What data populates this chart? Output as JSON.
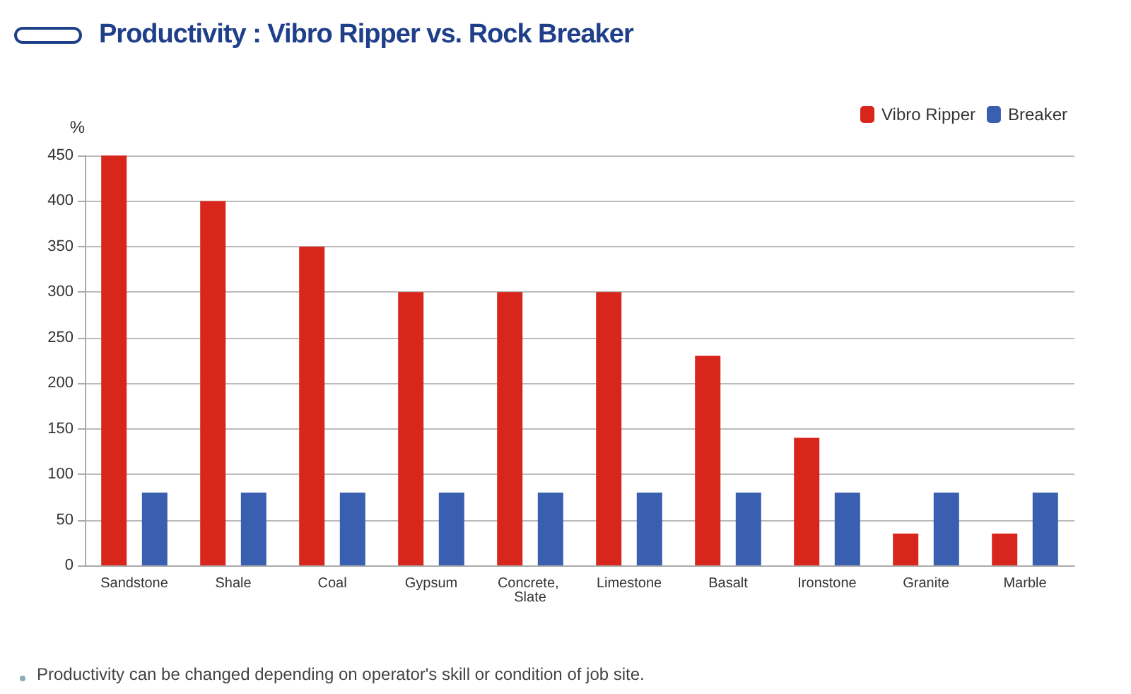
{
  "chart_data": {
    "type": "bar",
    "title": "Productivity : Vibro Ripper vs. Rock Breaker",
    "ylabel": "%",
    "categories": [
      "Sandstone",
      "Shale",
      "Coal",
      "Gypsum",
      "Concrete, Slate",
      "Limestone",
      "Basalt",
      "Ironstone",
      "Granite",
      "Marble"
    ],
    "series": [
      {
        "name": "Vibro Ripper",
        "color": "#d9261c",
        "values": [
          450,
          400,
          350,
          300,
          300,
          300,
          230,
          140,
          35,
          35
        ]
      },
      {
        "name": "Breaker",
        "color": "#3a5fb0",
        "values": [
          80,
          80,
          80,
          80,
          80,
          80,
          80,
          80,
          80,
          80
        ]
      }
    ],
    "ylim": [
      0,
      450
    ],
    "yticks": [
      0,
      50,
      100,
      150,
      200,
      250,
      300,
      350,
      400,
      450
    ],
    "grid": "y",
    "legend": "top right",
    "annotations": [
      "Productivity can be changed depending on operator's skill or condition of job site."
    ]
  }
}
